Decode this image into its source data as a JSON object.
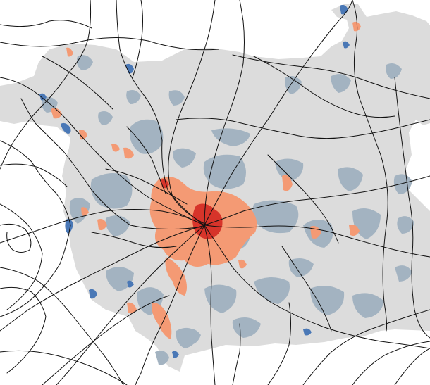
{
  "map": {
    "colors": {
      "background": "#ffffff",
      "region": "#dcdcdc",
      "low": "#a3b3c1",
      "very_low": "#4a78b6",
      "high": "#f49a74",
      "very_high": "#d7342a",
      "roads": "#111111"
    }
  }
}
